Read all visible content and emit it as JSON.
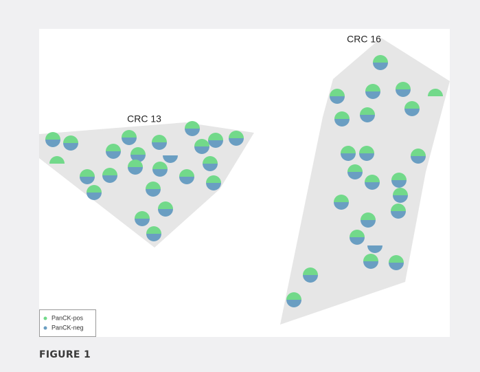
{
  "figure": {
    "panel_labels": [
      "CRC 13",
      "CRC 16"
    ],
    "legend": [
      "PanCK-pos",
      "PanCK-neg"
    ],
    "caption": "FIGURE 1"
  }
}
